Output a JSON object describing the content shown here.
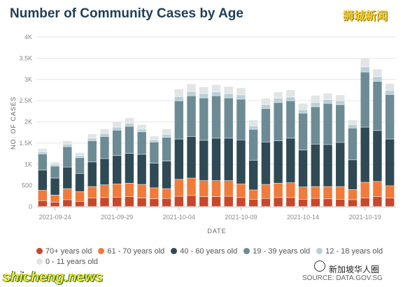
{
  "page": {
    "title": "Number of Community Cases by Age",
    "watermark_top": "狮城新闻",
    "watermark_bottom": "shicheng.news",
    "watermark_badge": "新加坡华人圈",
    "source": "SOURCE: DATA.GOV.SG"
  },
  "chart_data": {
    "type": "bar",
    "stacked": true,
    "xlabel": "DATE",
    "ylabel": "NO. OF CASES",
    "ylim": [
      0,
      4000
    ],
    "yticks": [
      {
        "value": 0,
        "label": "0"
      },
      {
        "value": 500,
        "label": "500"
      },
      {
        "value": 1000,
        "label": "1K"
      },
      {
        "value": 1500,
        "label": "1.5K"
      },
      {
        "value": 2000,
        "label": "2K"
      },
      {
        "value": 2500,
        "label": "2.5K"
      },
      {
        "value": 3000,
        "label": "3K"
      },
      {
        "value": 3500,
        "label": "3.5K"
      },
      {
        "value": 4000,
        "label": "4K"
      }
    ],
    "grid": true,
    "legend_position": "bottom",
    "categories": [
      "2021-09-23",
      "2021-09-24",
      "2021-09-25",
      "2021-09-26",
      "2021-09-27",
      "2021-09-28",
      "2021-09-29",
      "2021-09-30",
      "2021-10-01",
      "2021-10-02",
      "2021-10-03",
      "2021-10-04",
      "2021-10-05",
      "2021-10-06",
      "2021-10-07",
      "2021-10-08",
      "2021-10-09",
      "2021-10-10",
      "2021-10-11",
      "2021-10-12",
      "2021-10-13",
      "2021-10-14",
      "2021-10-15",
      "2021-10-16",
      "2021-10-17",
      "2021-10-18",
      "2021-10-19",
      "2021-10-20",
      "2021-10-21"
    ],
    "xticks": [
      {
        "index": 1,
        "label": "2021-09-24"
      },
      {
        "index": 6,
        "label": "2021-09-29"
      },
      {
        "index": 11,
        "label": "2021-10-04"
      },
      {
        "index": 16,
        "label": "2021-10-09"
      },
      {
        "index": 21,
        "label": "2021-10-14"
      },
      {
        "index": 26,
        "label": "2021-10-19"
      }
    ],
    "series": [
      {
        "name": "70+ years old",
        "color": "#c8472a",
        "values": [
          140,
          100,
          160,
          120,
          200,
          210,
          220,
          230,
          200,
          180,
          190,
          240,
          260,
          230,
          230,
          240,
          210,
          170,
          190,
          210,
          210,
          170,
          190,
          180,
          170,
          160,
          200,
          230,
          200
        ]
      },
      {
        "name": "61 - 70 years old",
        "color": "#f07b3a",
        "values": [
          240,
          170,
          260,
          230,
          270,
          300,
          310,
          320,
          320,
          260,
          230,
          400,
          410,
          380,
          380,
          370,
          320,
          220,
          330,
          340,
          350,
          290,
          280,
          290,
          300,
          240,
          370,
          360,
          290
        ]
      },
      {
        "name": "40 - 60 years old",
        "color": "#2f4a55",
        "values": [
          480,
          400,
          510,
          430,
          580,
          620,
          670,
          700,
          710,
          580,
          650,
          950,
          980,
          950,
          1000,
          1000,
          1040,
          700,
          1000,
          1000,
          1050,
          870,
          1000,
          990,
          1040,
          700,
          1300,
          1200,
          1100
        ]
      },
      {
        "name": "19 - 39 years old",
        "color": "#6c8b95",
        "values": [
          380,
          280,
          480,
          370,
          500,
          520,
          600,
          640,
          530,
          500,
          560,
          900,
          960,
          1000,
          1000,
          950,
          960,
          730,
          790,
          900,
          880,
          870,
          880,
          970,
          890,
          750,
          1300,
          1160,
          1050
        ]
      },
      {
        "name": "12 - 18 years old",
        "color": "#b8d0d6",
        "values": [
          50,
          40,
          60,
          50,
          60,
          70,
          70,
          70,
          60,
          50,
          70,
          100,
          100,
          100,
          90,
          100,
          100,
          80,
          90,
          100,
          90,
          80,
          100,
          90,
          90,
          80,
          120,
          110,
          100
        ]
      },
      {
        "name": "0 - 11 years old",
        "color": "#e1e5e6",
        "values": [
          80,
          60,
          80,
          70,
          100,
          110,
          130,
          130,
          110,
          90,
          130,
          180,
          180,
          160,
          170,
          170,
          170,
          140,
          150,
          150,
          170,
          150,
          170,
          150,
          140,
          110,
          200,
          180,
          160
        ]
      }
    ]
  }
}
